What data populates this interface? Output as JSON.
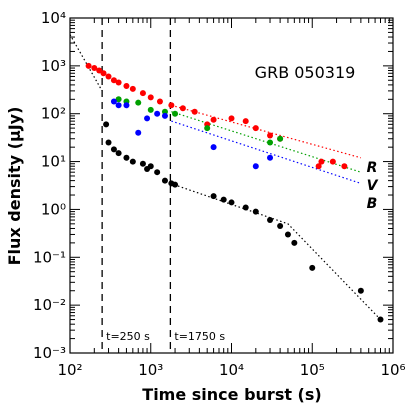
{
  "chart_data": {
    "type": "scatter",
    "title": "GRB 050319",
    "x_label": "Time since burst (s)",
    "y_label": "Flux density (μJy)",
    "log_x": true,
    "log_y": true,
    "xlim": [
      100,
      1000000
    ],
    "ylim": [
      0.001,
      10000
    ],
    "xticks": [
      {
        "value": 100,
        "label": "10²"
      },
      {
        "value": 1000,
        "label": "10³"
      },
      {
        "value": 10000,
        "label": "10⁴"
      },
      {
        "value": 100000,
        "label": "10⁵"
      },
      {
        "value": 1000000,
        "label": "10⁶"
      }
    ],
    "yticks": [
      {
        "value": 0.001,
        "label": "10⁻³"
      },
      {
        "value": 0.01,
        "label": "10⁻²"
      },
      {
        "value": 0.1,
        "label": "10⁻¹"
      },
      {
        "value": 1,
        "label": "10⁰"
      },
      {
        "value": 10,
        "label": "10¹"
      },
      {
        "value": 100,
        "label": "10²"
      },
      {
        "value": 1000,
        "label": "10³"
      },
      {
        "value": 10000,
        "label": "10⁴"
      }
    ],
    "series": [
      {
        "name": "R",
        "color": "#ff0000",
        "x": [
          170,
          200,
          230,
          260,
          300,
          350,
          400,
          500,
          600,
          800,
          1000,
          1300,
          1800,
          2500,
          3500,
          5000,
          6000,
          10000,
          15000,
          20000,
          30000,
          40000,
          120000,
          130000,
          180000,
          250000
        ],
        "values": [
          1000,
          900,
          800,
          700,
          600,
          500,
          450,
          380,
          330,
          270,
          220,
          180,
          150,
          130,
          110,
          60,
          75,
          80,
          70,
          50,
          35,
          30,
          8,
          10,
          10,
          8
        ]
      },
      {
        "name": "V",
        "color": "#00a000",
        "x": [
          400,
          500,
          700,
          1000,
          1500,
          2000,
          5000,
          30000,
          40000
        ],
        "values": [
          200,
          180,
          170,
          120,
          110,
          100,
          50,
          25,
          30
        ]
      },
      {
        "name": "B",
        "color": "#0000ff",
        "x": [
          350,
          400,
          500,
          700,
          900,
          1200,
          1500,
          6000,
          20000,
          30000
        ],
        "values": [
          180,
          150,
          150,
          40,
          80,
          100,
          90,
          20,
          8,
          12
        ]
      },
      {
        "color": "#000000",
        "x": [
          280,
          300,
          350,
          400,
          500,
          600,
          800,
          900,
          1000,
          1200,
          1500,
          1800,
          2000,
          6000,
          8000,
          10000,
          15000,
          20000,
          30000,
          40000,
          50000,
          60000,
          100000,
          400000,
          700000
        ],
        "values": [
          60,
          25,
          18,
          15,
          12,
          10,
          9,
          7,
          8,
          6,
          4,
          3.5,
          3.3,
          1.9,
          1.6,
          1.4,
          1.1,
          0.9,
          0.6,
          0.45,
          0.3,
          0.2,
          0.06,
          0.02,
          0.005
        ]
      }
    ],
    "fits": [
      {
        "color": "#ff0000",
        "x": [
          1800,
          400000
        ],
        "values": [
          150,
          12
        ]
      },
      {
        "color": "#00a000",
        "x": [
          1800,
          400000
        ],
        "values": [
          110,
          6
        ]
      },
      {
        "color": "#0000ff",
        "x": [
          1800,
          400000
        ],
        "values": [
          70,
          3.5
        ]
      },
      {
        "color": "#000000",
        "x": [
          100,
          250
        ],
        "values": [
          4500,
          300
        ]
      },
      {
        "color": "#000000",
        "x": [
          1750,
          50000,
          700000
        ],
        "values": [
          3.5,
          0.5,
          0.005
        ]
      }
    ],
    "vlines": [
      {
        "value": 250,
        "label": "t=250 s"
      },
      {
        "value": 1750,
        "label": "t=1750 s"
      }
    ]
  }
}
